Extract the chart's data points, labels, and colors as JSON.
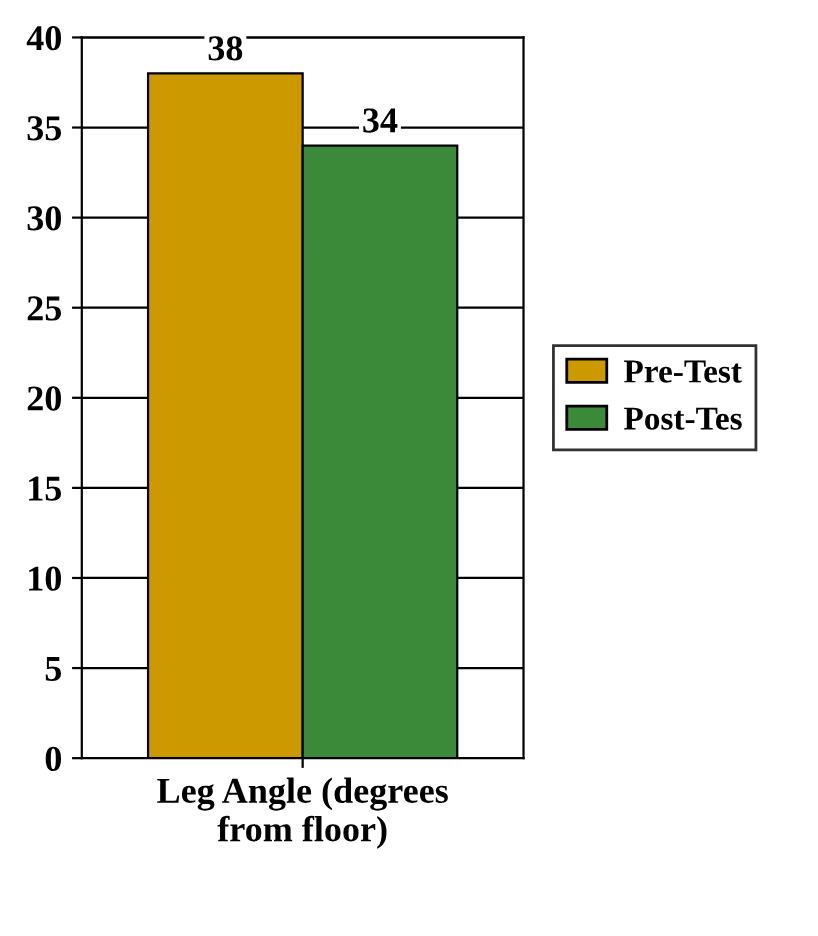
{
  "chart_data": {
    "type": "bar",
    "categories": [
      "Leg Angle (degrees\nfrom floor)"
    ],
    "series": [
      {
        "name": "Pre-Test",
        "color": "#cc9900",
        "values": [
          38
        ]
      },
      {
        "name": "Post-Tes",
        "color": "#3a8a3a",
        "values": [
          34
        ]
      }
    ],
    "ylim": [
      0,
      40
    ],
    "yticks": [
      0,
      5,
      10,
      15,
      20,
      25,
      30,
      35,
      40
    ],
    "grid": "y",
    "legend": "right",
    "data_labels": true
  }
}
